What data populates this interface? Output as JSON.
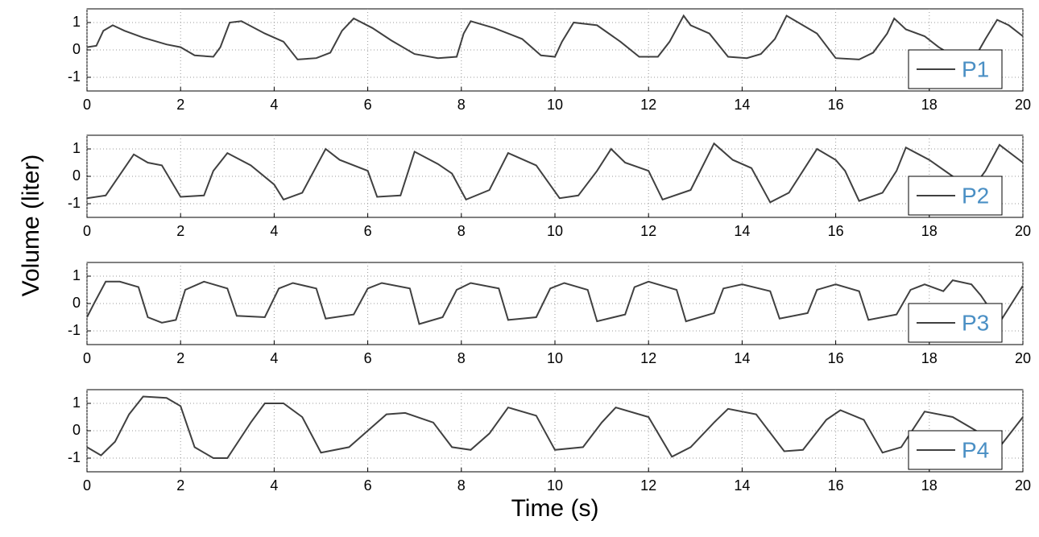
{
  "ylabel": "Volume (liter)",
  "xlabel": "Time (s)",
  "chart_data": [
    {
      "type": "line",
      "legend": "lower right",
      "grid": true,
      "xlim": [
        0,
        20
      ],
      "xticks": [
        0,
        2,
        4,
        6,
        8,
        10,
        12,
        14,
        16,
        18,
        20
      ],
      "ylim": [
        -1.5,
        1.5
      ],
      "yticks": [
        -1,
        0,
        1
      ],
      "x": [
        0,
        0.2,
        0.35,
        0.55,
        0.8,
        1.2,
        1.7,
        2.0,
        2.3,
        2.7,
        2.85,
        3.05,
        3.3,
        3.8,
        4.2,
        4.5,
        4.9,
        5.2,
        5.45,
        5.7,
        6.1,
        6.5,
        7.0,
        7.5,
        7.9,
        8.05,
        8.2,
        8.7,
        9.3,
        9.7,
        10.0,
        10.15,
        10.4,
        10.9,
        11.4,
        11.8,
        12.2,
        12.45,
        12.75,
        12.9,
        13.3,
        13.7,
        14.1,
        14.4,
        14.7,
        14.95,
        15.2,
        15.6,
        16.0,
        16.5,
        16.8,
        17.1,
        17.25,
        17.5,
        17.9,
        18.2,
        18.6,
        19.0,
        19.2,
        19.45,
        19.7,
        20
      ],
      "series": [
        {
          "name": "P1",
          "color": "#404040",
          "values": [
            0.1,
            0.15,
            0.7,
            0.9,
            0.7,
            0.45,
            0.2,
            0.1,
            -0.2,
            -0.25,
            0.1,
            1.0,
            1.05,
            0.6,
            0.3,
            -0.35,
            -0.3,
            -0.1,
            0.7,
            1.15,
            0.8,
            0.35,
            -0.15,
            -0.3,
            -0.25,
            0.6,
            1.05,
            0.8,
            0.4,
            -0.2,
            -0.25,
            0.3,
            1.0,
            0.9,
            0.3,
            -0.25,
            -0.25,
            0.3,
            1.25,
            0.9,
            0.6,
            -0.25,
            -0.3,
            -0.15,
            0.4,
            1.25,
            1.0,
            0.6,
            -0.3,
            -0.35,
            -0.1,
            0.6,
            1.15,
            0.75,
            0.5,
            0.1,
            -0.3,
            -0.2,
            0.4,
            1.1,
            0.9,
            0.5
          ]
        }
      ]
    },
    {
      "type": "line",
      "legend": "lower right",
      "grid": true,
      "xlim": [
        0,
        20
      ],
      "xticks": [
        0,
        2,
        4,
        6,
        8,
        10,
        12,
        14,
        16,
        18,
        20
      ],
      "ylim": [
        -1.5,
        1.5
      ],
      "yticks": [
        -1,
        0,
        1
      ],
      "x": [
        0,
        0.4,
        1.0,
        1.3,
        1.6,
        2.0,
        2.5,
        2.7,
        3.0,
        3.5,
        4.0,
        4.2,
        4.6,
        4.85,
        5.1,
        5.4,
        6.0,
        6.2,
        6.7,
        7.0,
        7.5,
        7.8,
        8.1,
        8.6,
        9.0,
        9.6,
        10.1,
        10.5,
        10.9,
        11.2,
        11.5,
        12.0,
        12.3,
        12.9,
        13.4,
        13.8,
        14.2,
        14.6,
        15.0,
        15.3,
        15.6,
        16.0,
        16.2,
        16.5,
        17.0,
        17.3,
        17.5,
        18.0,
        18.5,
        18.9,
        19.2,
        19.5,
        20
      ],
      "series": [
        {
          "name": "P2",
          "color": "#404040",
          "values": [
            -0.8,
            -0.7,
            0.8,
            0.5,
            0.4,
            -0.75,
            -0.7,
            0.2,
            0.85,
            0.4,
            -0.3,
            -0.85,
            -0.6,
            0.2,
            1.0,
            0.6,
            0.2,
            -0.75,
            -0.7,
            0.9,
            0.45,
            0.1,
            -0.85,
            -0.5,
            0.85,
            0.4,
            -0.8,
            -0.7,
            0.2,
            1.0,
            0.5,
            0.2,
            -0.85,
            -0.5,
            1.2,
            0.6,
            0.3,
            -0.95,
            -0.6,
            0.2,
            1.0,
            0.6,
            0.2,
            -0.9,
            -0.6,
            0.2,
            1.05,
            0.6,
            0.0,
            -0.5,
            0.2,
            1.15,
            0.5
          ]
        }
      ]
    },
    {
      "type": "line",
      "legend": "lower right",
      "grid": true,
      "xlim": [
        0,
        20
      ],
      "xticks": [
        0,
        2,
        4,
        6,
        8,
        10,
        12,
        14,
        16,
        18,
        20
      ],
      "ylim": [
        -1.5,
        1.5
      ],
      "yticks": [
        -1,
        0,
        1
      ],
      "x": [
        0,
        0.15,
        0.4,
        0.7,
        1.1,
        1.3,
        1.6,
        1.9,
        2.1,
        2.5,
        3.0,
        3.2,
        3.8,
        4.1,
        4.4,
        4.9,
        5.1,
        5.7,
        6.0,
        6.3,
        6.9,
        7.1,
        7.6,
        7.9,
        8.2,
        8.8,
        9.0,
        9.6,
        9.9,
        10.2,
        10.7,
        10.9,
        11.5,
        11.7,
        12.0,
        12.6,
        12.8,
        13.4,
        13.6,
        14.0,
        14.6,
        14.8,
        15.4,
        15.6,
        16.0,
        16.5,
        16.7,
        17.3,
        17.6,
        17.9,
        18.3,
        18.5,
        18.9,
        19.1,
        19.5,
        20
      ],
      "series": [
        {
          "name": "P3",
          "color": "#404040",
          "values": [
            -0.5,
            0.0,
            0.8,
            0.8,
            0.6,
            -0.5,
            -0.7,
            -0.6,
            0.5,
            0.8,
            0.55,
            -0.45,
            -0.5,
            0.55,
            0.75,
            0.55,
            -0.55,
            -0.4,
            0.55,
            0.75,
            0.55,
            -0.75,
            -0.5,
            0.5,
            0.75,
            0.55,
            -0.6,
            -0.5,
            0.55,
            0.75,
            0.5,
            -0.65,
            -0.4,
            0.6,
            0.8,
            0.5,
            -0.65,
            -0.35,
            0.55,
            0.7,
            0.45,
            -0.55,
            -0.35,
            0.5,
            0.7,
            0.45,
            -0.6,
            -0.4,
            0.5,
            0.7,
            0.45,
            0.85,
            0.7,
            0.3,
            -0.7,
            0.65
          ]
        }
      ]
    },
    {
      "type": "line",
      "legend": "lower right",
      "grid": true,
      "xlim": [
        0,
        20
      ],
      "xticks": [
        0,
        2,
        4,
        6,
        8,
        10,
        12,
        14,
        16,
        18,
        20
      ],
      "ylim": [
        -1.5,
        1.5
      ],
      "yticks": [
        -1,
        0,
        1
      ],
      "x": [
        0,
        0.3,
        0.6,
        0.9,
        1.2,
        1.7,
        2.0,
        2.3,
        2.7,
        3.0,
        3.5,
        3.8,
        4.2,
        4.6,
        5.0,
        5.6,
        6.0,
        6.4,
        6.8,
        7.4,
        7.8,
        8.2,
        8.6,
        9.0,
        9.6,
        10.0,
        10.6,
        11.0,
        11.3,
        12.0,
        12.5,
        12.9,
        13.4,
        13.7,
        14.3,
        14.9,
        15.3,
        15.8,
        16.1,
        16.6,
        17.0,
        17.4,
        17.9,
        18.5,
        19.0,
        19.5,
        20
      ],
      "series": [
        {
          "name": "P4",
          "color": "#404040",
          "values": [
            -0.6,
            -0.9,
            -0.4,
            0.6,
            1.25,
            1.2,
            0.9,
            -0.6,
            -1.0,
            -1.0,
            0.3,
            1.0,
            1.0,
            0.5,
            -0.8,
            -0.6,
            0.0,
            0.6,
            0.65,
            0.3,
            -0.6,
            -0.7,
            -0.1,
            0.85,
            0.55,
            -0.7,
            -0.6,
            0.3,
            0.85,
            0.5,
            -0.95,
            -0.6,
            0.3,
            0.8,
            0.6,
            -0.75,
            -0.7,
            0.4,
            0.75,
            0.4,
            -0.8,
            -0.6,
            0.7,
            0.5,
            0.0,
            -0.6,
            0.5
          ]
        }
      ]
    }
  ]
}
